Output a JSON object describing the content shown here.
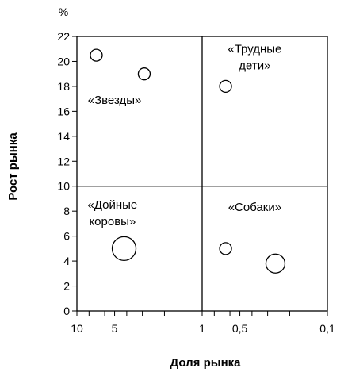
{
  "chart_data": {
    "type": "scatter",
    "title": "",
    "xlabel": "Доля рынка",
    "ylabel": "Рост рынка",
    "y_unit": "%",
    "x_scale": "log",
    "x_reversed": true,
    "xlim": [
      10,
      0.1
    ],
    "ylim": [
      0,
      22
    ],
    "x_ticks": [
      {
        "value": 10,
        "label": "10"
      },
      {
        "value": 5,
        "label": "5"
      },
      {
        "value": 1,
        "label": "1"
      },
      {
        "value": 0.5,
        "label": "0,5"
      },
      {
        "value": 0.1,
        "label": "0,1"
      }
    ],
    "x_minor_ticks": [
      8,
      6,
      4,
      3,
      2,
      0.8,
      0.6,
      0.4,
      0.3,
      0.2
    ],
    "y_ticks": [
      0,
      2,
      4,
      6,
      8,
      10,
      12,
      14,
      16,
      18,
      20,
      22
    ],
    "divider_x": 1,
    "divider_y": 10,
    "grid": false,
    "quadrant_labels": [
      {
        "lines": [
          "«Звезды»"
        ],
        "x": 5,
        "y": 16.6
      },
      {
        "lines": [
          "«Трудные",
          "дети»"
        ],
        "x": 0.38,
        "y": 20.7
      },
      {
        "lines": [
          "«Дойные",
          "коровы»"
        ],
        "x": 5.2,
        "y": 8.2
      },
      {
        "lines": [
          "«Собаки»"
        ],
        "x": 0.38,
        "y": 8.0
      }
    ],
    "series": [
      {
        "points": [
          {
            "x": 7.0,
            "y": 20.5,
            "size": 1
          },
          {
            "x": 2.9,
            "y": 19.0,
            "size": 1
          },
          {
            "x": 0.65,
            "y": 18.0,
            "size": 1
          },
          {
            "x": 4.2,
            "y": 5.0,
            "size": 2
          },
          {
            "x": 0.65,
            "y": 5.0,
            "size": 1
          },
          {
            "x": 0.26,
            "y": 3.8,
            "size": 1.6
          }
        ]
      }
    ]
  }
}
